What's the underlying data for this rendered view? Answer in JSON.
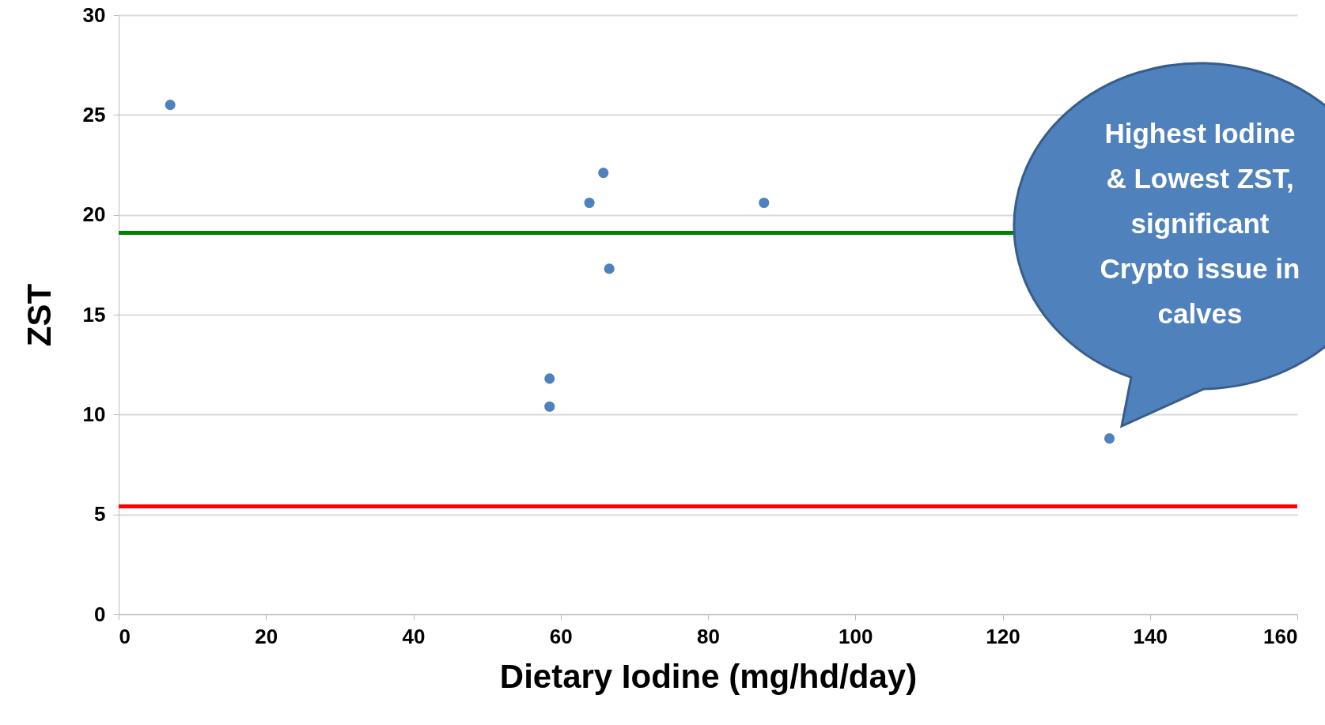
{
  "chart_data": {
    "type": "scatter",
    "xlabel": "Dietary Iodine (mg/hd/day)",
    "ylabel": "ZST",
    "x": [
      7.0,
      65.8,
      63.9,
      87.6,
      66.6,
      58.5,
      58.5,
      134.5
    ],
    "series": [
      {
        "color": "#4f81bd",
        "values": [
          25.5,
          22.1,
          20.6,
          20.6,
          17.3,
          11.8,
          10.4,
          8.8
        ]
      }
    ],
    "xlim": [
      0,
      160
    ],
    "xticks": [
      0,
      20,
      40,
      60,
      80,
      100,
      120,
      140,
      160
    ],
    "ylim": [
      0,
      30
    ],
    "yticks": [
      0,
      5,
      10,
      15,
      20,
      25,
      30
    ],
    "ref_lines": [
      {
        "axis": "y",
        "value": 19.1,
        "color": "#008000"
      },
      {
        "axis": "y",
        "value": 5.4,
        "color": "#ff0000"
      }
    ],
    "annotations": [
      "Highest Iodine & Lowest ZST, significant Crypto issue in calves"
    ],
    "grid": "y",
    "marker": "circle"
  }
}
